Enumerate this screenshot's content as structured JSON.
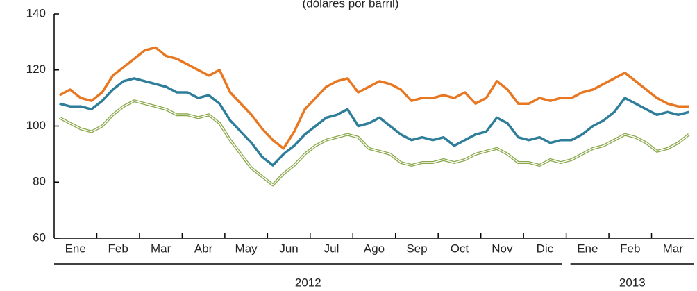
{
  "chart_data": {
    "type": "line",
    "subtitle": "(dólares por barril)",
    "categories": [
      "Ene",
      null,
      null,
      null,
      "Feb",
      null,
      null,
      null,
      "Mar",
      null,
      null,
      null,
      "Abr",
      null,
      null,
      null,
      "May",
      null,
      null,
      null,
      "Jun",
      null,
      null,
      null,
      "Jul",
      null,
      null,
      null,
      "Ago",
      null,
      null,
      null,
      "Sep",
      null,
      null,
      null,
      "Oct",
      null,
      null,
      null,
      "Nov",
      null,
      null,
      null,
      "Dic",
      null,
      null,
      null,
      "Ene",
      null,
      null,
      null,
      "Feb",
      null,
      null,
      null,
      "Mar",
      null,
      null,
      null
    ],
    "years": [
      "2012",
      "2013"
    ],
    "series": [
      {
        "color": "#e87722",
        "values": [
          111,
          113,
          110,
          109,
          112,
          118,
          121,
          124,
          127,
          128,
          125,
          124,
          122,
          120,
          118,
          120,
          112,
          108,
          104,
          99,
          95,
          92,
          98,
          106,
          110,
          114,
          116,
          117,
          112,
          114,
          116,
          115,
          113,
          109,
          110,
          110,
          111,
          110,
          112,
          108,
          110,
          116,
          113,
          108,
          108,
          110,
          109,
          110,
          110,
          112,
          113,
          115,
          117,
          119,
          116,
          113,
          110,
          108,
          107,
          107
        ]
      },
      {
        "color": "#2e7d9a",
        "values": [
          108,
          107,
          107,
          106,
          109,
          113,
          116,
          117,
          116,
          115,
          114,
          112,
          112,
          110,
          111,
          108,
          102,
          98,
          94,
          89,
          86,
          90,
          93,
          97,
          100,
          103,
          104,
          106,
          100,
          101,
          103,
          100,
          97,
          95,
          96,
          95,
          96,
          93,
          95,
          97,
          98,
          103,
          101,
          96,
          95,
          96,
          94,
          95,
          95,
          97,
          100,
          102,
          105,
          110,
          108,
          106,
          104,
          105,
          104,
          105
        ]
      },
      {
        "color": "#8aa84b",
        "style": "double",
        "values": [
          103,
          101,
          99,
          98,
          100,
          104,
          107,
          109,
          108,
          107,
          106,
          104,
          104,
          103,
          104,
          101,
          95,
          90,
          85,
          82,
          79,
          83,
          86,
          90,
          93,
          95,
          96,
          97,
          96,
          92,
          91,
          90,
          87,
          86,
          87,
          87,
          88,
          87,
          88,
          90,
          91,
          92,
          90,
          87,
          87,
          86,
          88,
          87,
          88,
          90,
          92,
          93,
          95,
          97,
          96,
          94,
          91,
          92,
          94,
          97
        ]
      }
    ],
    "ylim": [
      60,
      140
    ],
    "yticks": [
      60,
      80,
      100,
      120,
      140
    ]
  }
}
